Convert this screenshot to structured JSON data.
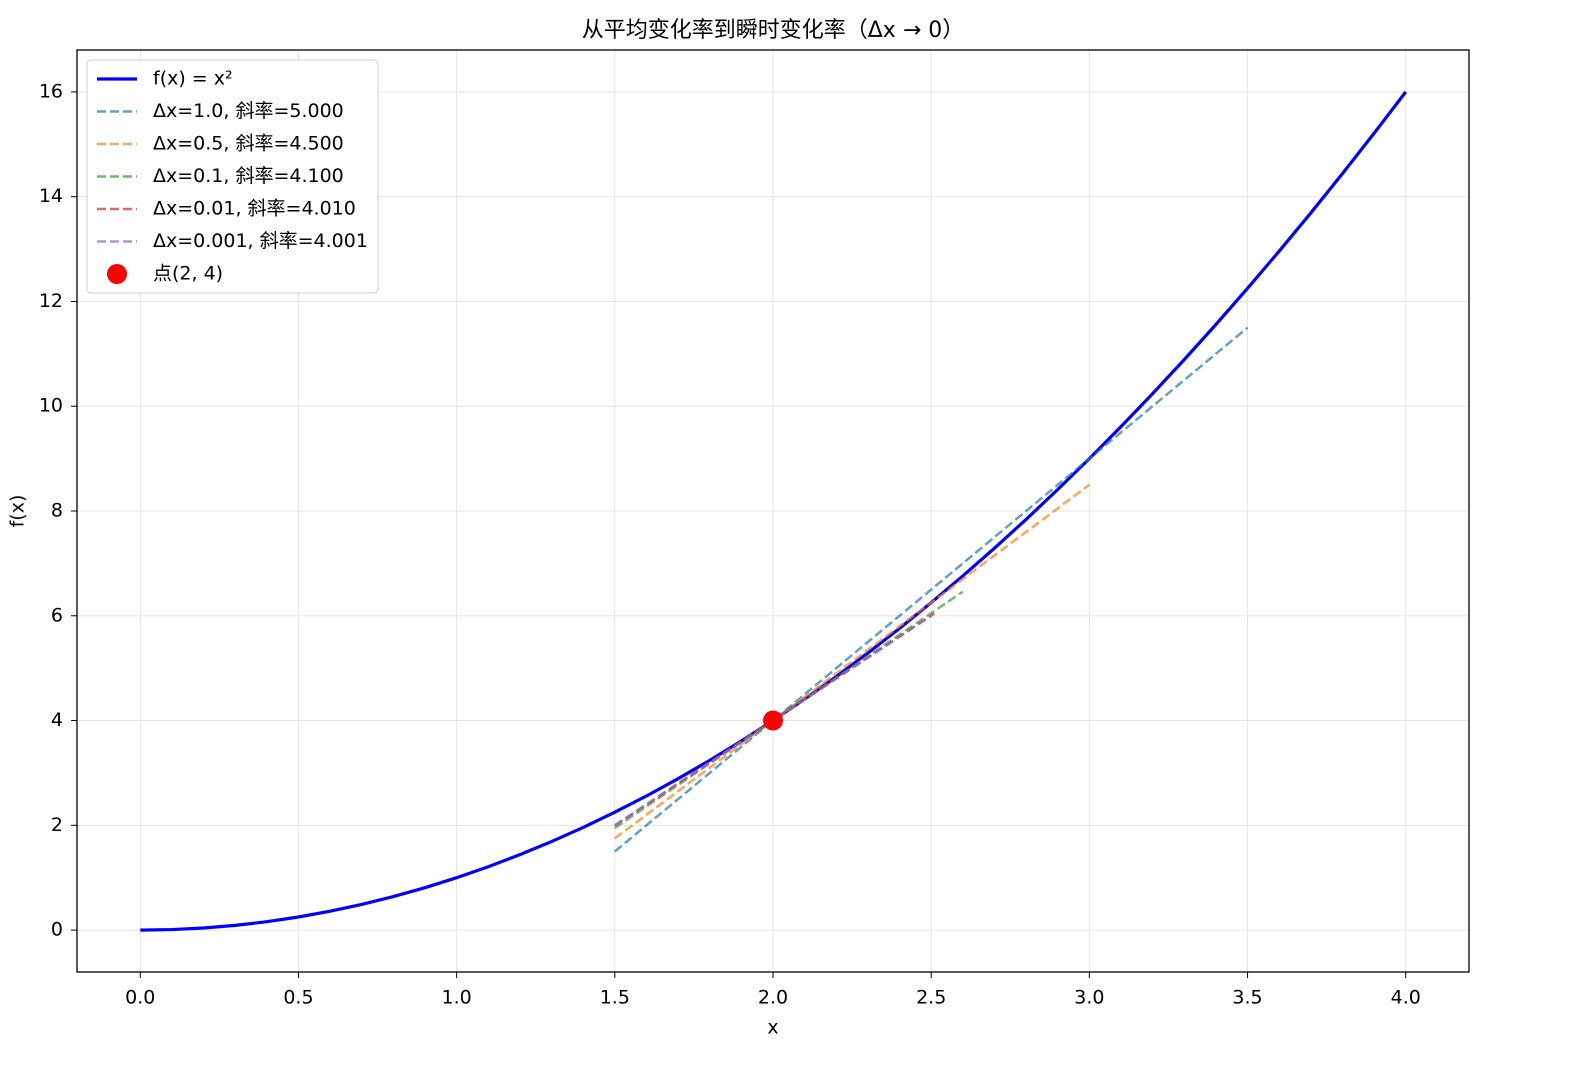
{
  "chart_data": {
    "type": "line",
    "title": "从平均变化率到瞬时变化率（Δx → 0）",
    "xlabel": "x",
    "ylabel": "f(x)",
    "xlim": [
      -0.2,
      4.2
    ],
    "ylim": [
      -0.8,
      16.8
    ],
    "xticks": [
      {
        "value": 0,
        "label": "0.0"
      },
      0.5,
      {
        "value": 1,
        "label": "1.0"
      },
      1.5,
      {
        "value": 2,
        "label": "2.0"
      },
      2.5,
      {
        "value": 3,
        "label": "3.0"
      },
      3.5,
      {
        "value": 4,
        "label": "4.0"
      }
    ],
    "yticks": [
      0,
      2,
      4,
      6,
      8,
      10,
      12,
      14,
      16
    ],
    "grid": true,
    "legend": "upper left",
    "series": [
      {
        "name": "f(x) = x²",
        "color": "#0000ff",
        "style": "solid",
        "x": [
          0,
          0.1,
          0.2,
          0.3,
          0.4,
          0.5,
          0.6,
          0.7,
          0.8,
          0.9,
          1,
          1.1,
          1.2,
          1.3,
          1.4,
          1.5,
          1.6,
          1.7,
          1.8,
          1.9,
          2,
          2.1,
          2.2,
          2.3,
          2.4,
          2.5,
          2.6,
          2.7,
          2.8,
          2.9,
          3,
          3.1,
          3.2,
          3.3,
          3.4,
          3.5,
          3.6,
          3.7,
          3.8,
          3.9,
          4
        ],
        "values": [
          0,
          0.01,
          0.04,
          0.09,
          0.16,
          0.25,
          0.36,
          0.49,
          0.64,
          0.81,
          1,
          1.21,
          1.44,
          1.69,
          1.96,
          2.25,
          2.56,
          2.89,
          3.24,
          3.61,
          4,
          4.41,
          4.84,
          5.29,
          5.76,
          6.25,
          6.76,
          7.29,
          7.84,
          8.41,
          9,
          9.61,
          10.24,
          10.89,
          11.56,
          12.25,
          12.96,
          13.69,
          14.44,
          15.21,
          16
        ]
      },
      {
        "name": "Δx=1.0, 斜率=5.000",
        "color": "#1f77b4",
        "style": "dashed",
        "x": [
          1.5,
          3.5
        ],
        "values": [
          1.5,
          11.5
        ]
      },
      {
        "name": "Δx=0.5, 斜率=4.500",
        "color": "#ff7f0e",
        "style": "dashed",
        "x": [
          1.5,
          3.0
        ],
        "values": [
          1.75,
          8.5
        ]
      },
      {
        "name": "Δx=0.1, 斜率=4.100",
        "color": "#2ca02c",
        "style": "dashed",
        "x": [
          1.5,
          2.6
        ],
        "values": [
          1.95,
          6.46
        ]
      },
      {
        "name": "Δx=0.01, 斜率=4.010",
        "color": "#d62728",
        "style": "dashed",
        "x": [
          1.5,
          2.51
        ],
        "values": [
          1.995,
          6.0451
        ]
      },
      {
        "name": "Δx=0.001, 斜率=4.001",
        "color": "#9467bd",
        "style": "dashed",
        "x": [
          1.5,
          2.501
        ],
        "values": [
          1.9995,
          6.004501
        ]
      },
      {
        "name": "点(2, 4)",
        "color": "#ff0000",
        "style": "scatter",
        "x": [
          2
        ],
        "values": [
          4
        ]
      }
    ]
  }
}
